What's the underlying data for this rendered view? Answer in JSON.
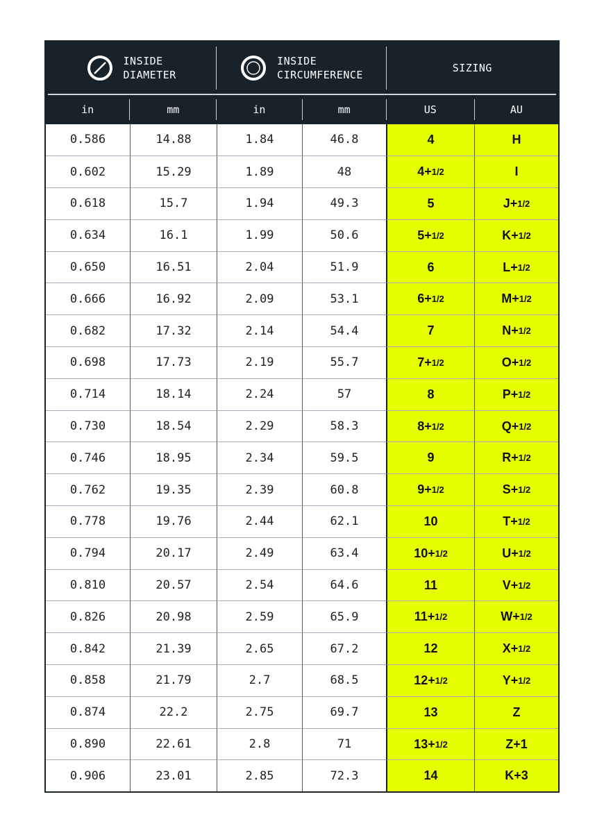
{
  "header": {
    "groups": [
      {
        "icon": "diameter-ring-icon",
        "label_1": "INSIDE",
        "label_2": "DIAMETER"
      },
      {
        "icon": "circumference-ring-icon",
        "label_1": "INSIDE",
        "label_2": "CIRCUMFERENCE"
      },
      {
        "label": "SIZING"
      }
    ],
    "columns": [
      "in",
      "mm",
      "in",
      "mm",
      "US",
      "AU"
    ]
  },
  "colors": {
    "header_bg": "#18222a",
    "highlight": "#e5ff00"
  },
  "rows": [
    {
      "d_in": "0.586",
      "d_mm": "14.88",
      "c_in": "1.84",
      "c_mm": "46.8",
      "us": "4",
      "us_frac": "",
      "au": "H",
      "au_frac": ""
    },
    {
      "d_in": "0.602",
      "d_mm": "15.29",
      "c_in": "1.89",
      "c_mm": "48",
      "us": "4+",
      "us_frac": "1/2",
      "au": "I",
      "au_frac": ""
    },
    {
      "d_in": "0.618",
      "d_mm": "15.7",
      "c_in": "1.94",
      "c_mm": "49.3",
      "us": "5",
      "us_frac": "",
      "au": "J+",
      "au_frac": "1/2"
    },
    {
      "d_in": "0.634",
      "d_mm": "16.1",
      "c_in": "1.99",
      "c_mm": "50.6",
      "us": "5+",
      "us_frac": "1/2",
      "au": "K+",
      "au_frac": "1/2"
    },
    {
      "d_in": "0.650",
      "d_mm": "16.51",
      "c_in": "2.04",
      "c_mm": "51.9",
      "us": "6",
      "us_frac": "",
      "au": "L+",
      "au_frac": "1/2"
    },
    {
      "d_in": "0.666",
      "d_mm": "16.92",
      "c_in": "2.09",
      "c_mm": "53.1",
      "us": "6+",
      "us_frac": "1/2",
      "au": "M+",
      "au_frac": "1/2"
    },
    {
      "d_in": "0.682",
      "d_mm": "17.32",
      "c_in": "2.14",
      "c_mm": "54.4",
      "us": "7",
      "us_frac": "",
      "au": "N+",
      "au_frac": "1/2"
    },
    {
      "d_in": "0.698",
      "d_mm": "17.73",
      "c_in": "2.19",
      "c_mm": "55.7",
      "us": "7+",
      "us_frac": "1/2",
      "au": "O+",
      "au_frac": "1/2"
    },
    {
      "d_in": "0.714",
      "d_mm": "18.14",
      "c_in": "2.24",
      "c_mm": "57",
      "us": "8",
      "us_frac": "",
      "au": "P+",
      "au_frac": "1/2"
    },
    {
      "d_in": "0.730",
      "d_mm": "18.54",
      "c_in": "2.29",
      "c_mm": "58.3",
      "us": "8+",
      "us_frac": "1/2",
      "au": "Q+",
      "au_frac": "1/2"
    },
    {
      "d_in": "0.746",
      "d_mm": "18.95",
      "c_in": "2.34",
      "c_mm": "59.5",
      "us": "9",
      "us_frac": "",
      "au": "R+",
      "au_frac": "1/2"
    },
    {
      "d_in": "0.762",
      "d_mm": "19.35",
      "c_in": "2.39",
      "c_mm": "60.8",
      "us": "9+",
      "us_frac": "1/2",
      "au": "S+",
      "au_frac": "1/2"
    },
    {
      "d_in": "0.778",
      "d_mm": "19.76",
      "c_in": "2.44",
      "c_mm": "62.1",
      "us": "10",
      "us_frac": "",
      "au": "T+",
      "au_frac": "1/2"
    },
    {
      "d_in": "0.794",
      "d_mm": "20.17",
      "c_in": "2.49",
      "c_mm": "63.4",
      "us": "10+",
      "us_frac": "1/2",
      "au": "U+",
      "au_frac": "1/2"
    },
    {
      "d_in": "0.810",
      "d_mm": "20.57",
      "c_in": "2.54",
      "c_mm": "64.6",
      "us": "11",
      "us_frac": "",
      "au": "V+",
      "au_frac": "1/2"
    },
    {
      "d_in": "0.826",
      "d_mm": "20.98",
      "c_in": "2.59",
      "c_mm": "65.9",
      "us": "11+",
      "us_frac": "1/2",
      "au": "W+",
      "au_frac": "1/2"
    },
    {
      "d_in": "0.842",
      "d_mm": "21.39",
      "c_in": "2.65",
      "c_mm": "67.2",
      "us": "12",
      "us_frac": "",
      "au": "X+",
      "au_frac": "1/2"
    },
    {
      "d_in": "0.858",
      "d_mm": "21.79",
      "c_in": "2.7",
      "c_mm": "68.5",
      "us": "12+",
      "us_frac": "1/2",
      "au": "Y+",
      "au_frac": "1/2"
    },
    {
      "d_in": "0.874",
      "d_mm": "22.2",
      "c_in": "2.75",
      "c_mm": "69.7",
      "us": "13",
      "us_frac": "",
      "au": "Z",
      "au_frac": ""
    },
    {
      "d_in": "0.890",
      "d_mm": "22.61",
      "c_in": "2.8",
      "c_mm": "71",
      "us": "13+",
      "us_frac": "1/2",
      "au": "Z+1",
      "au_frac": ""
    },
    {
      "d_in": "0.906",
      "d_mm": "23.01",
      "c_in": "2.85",
      "c_mm": "72.3",
      "us": "14",
      "us_frac": "",
      "au": "K+3",
      "au_frac": ""
    }
  ]
}
